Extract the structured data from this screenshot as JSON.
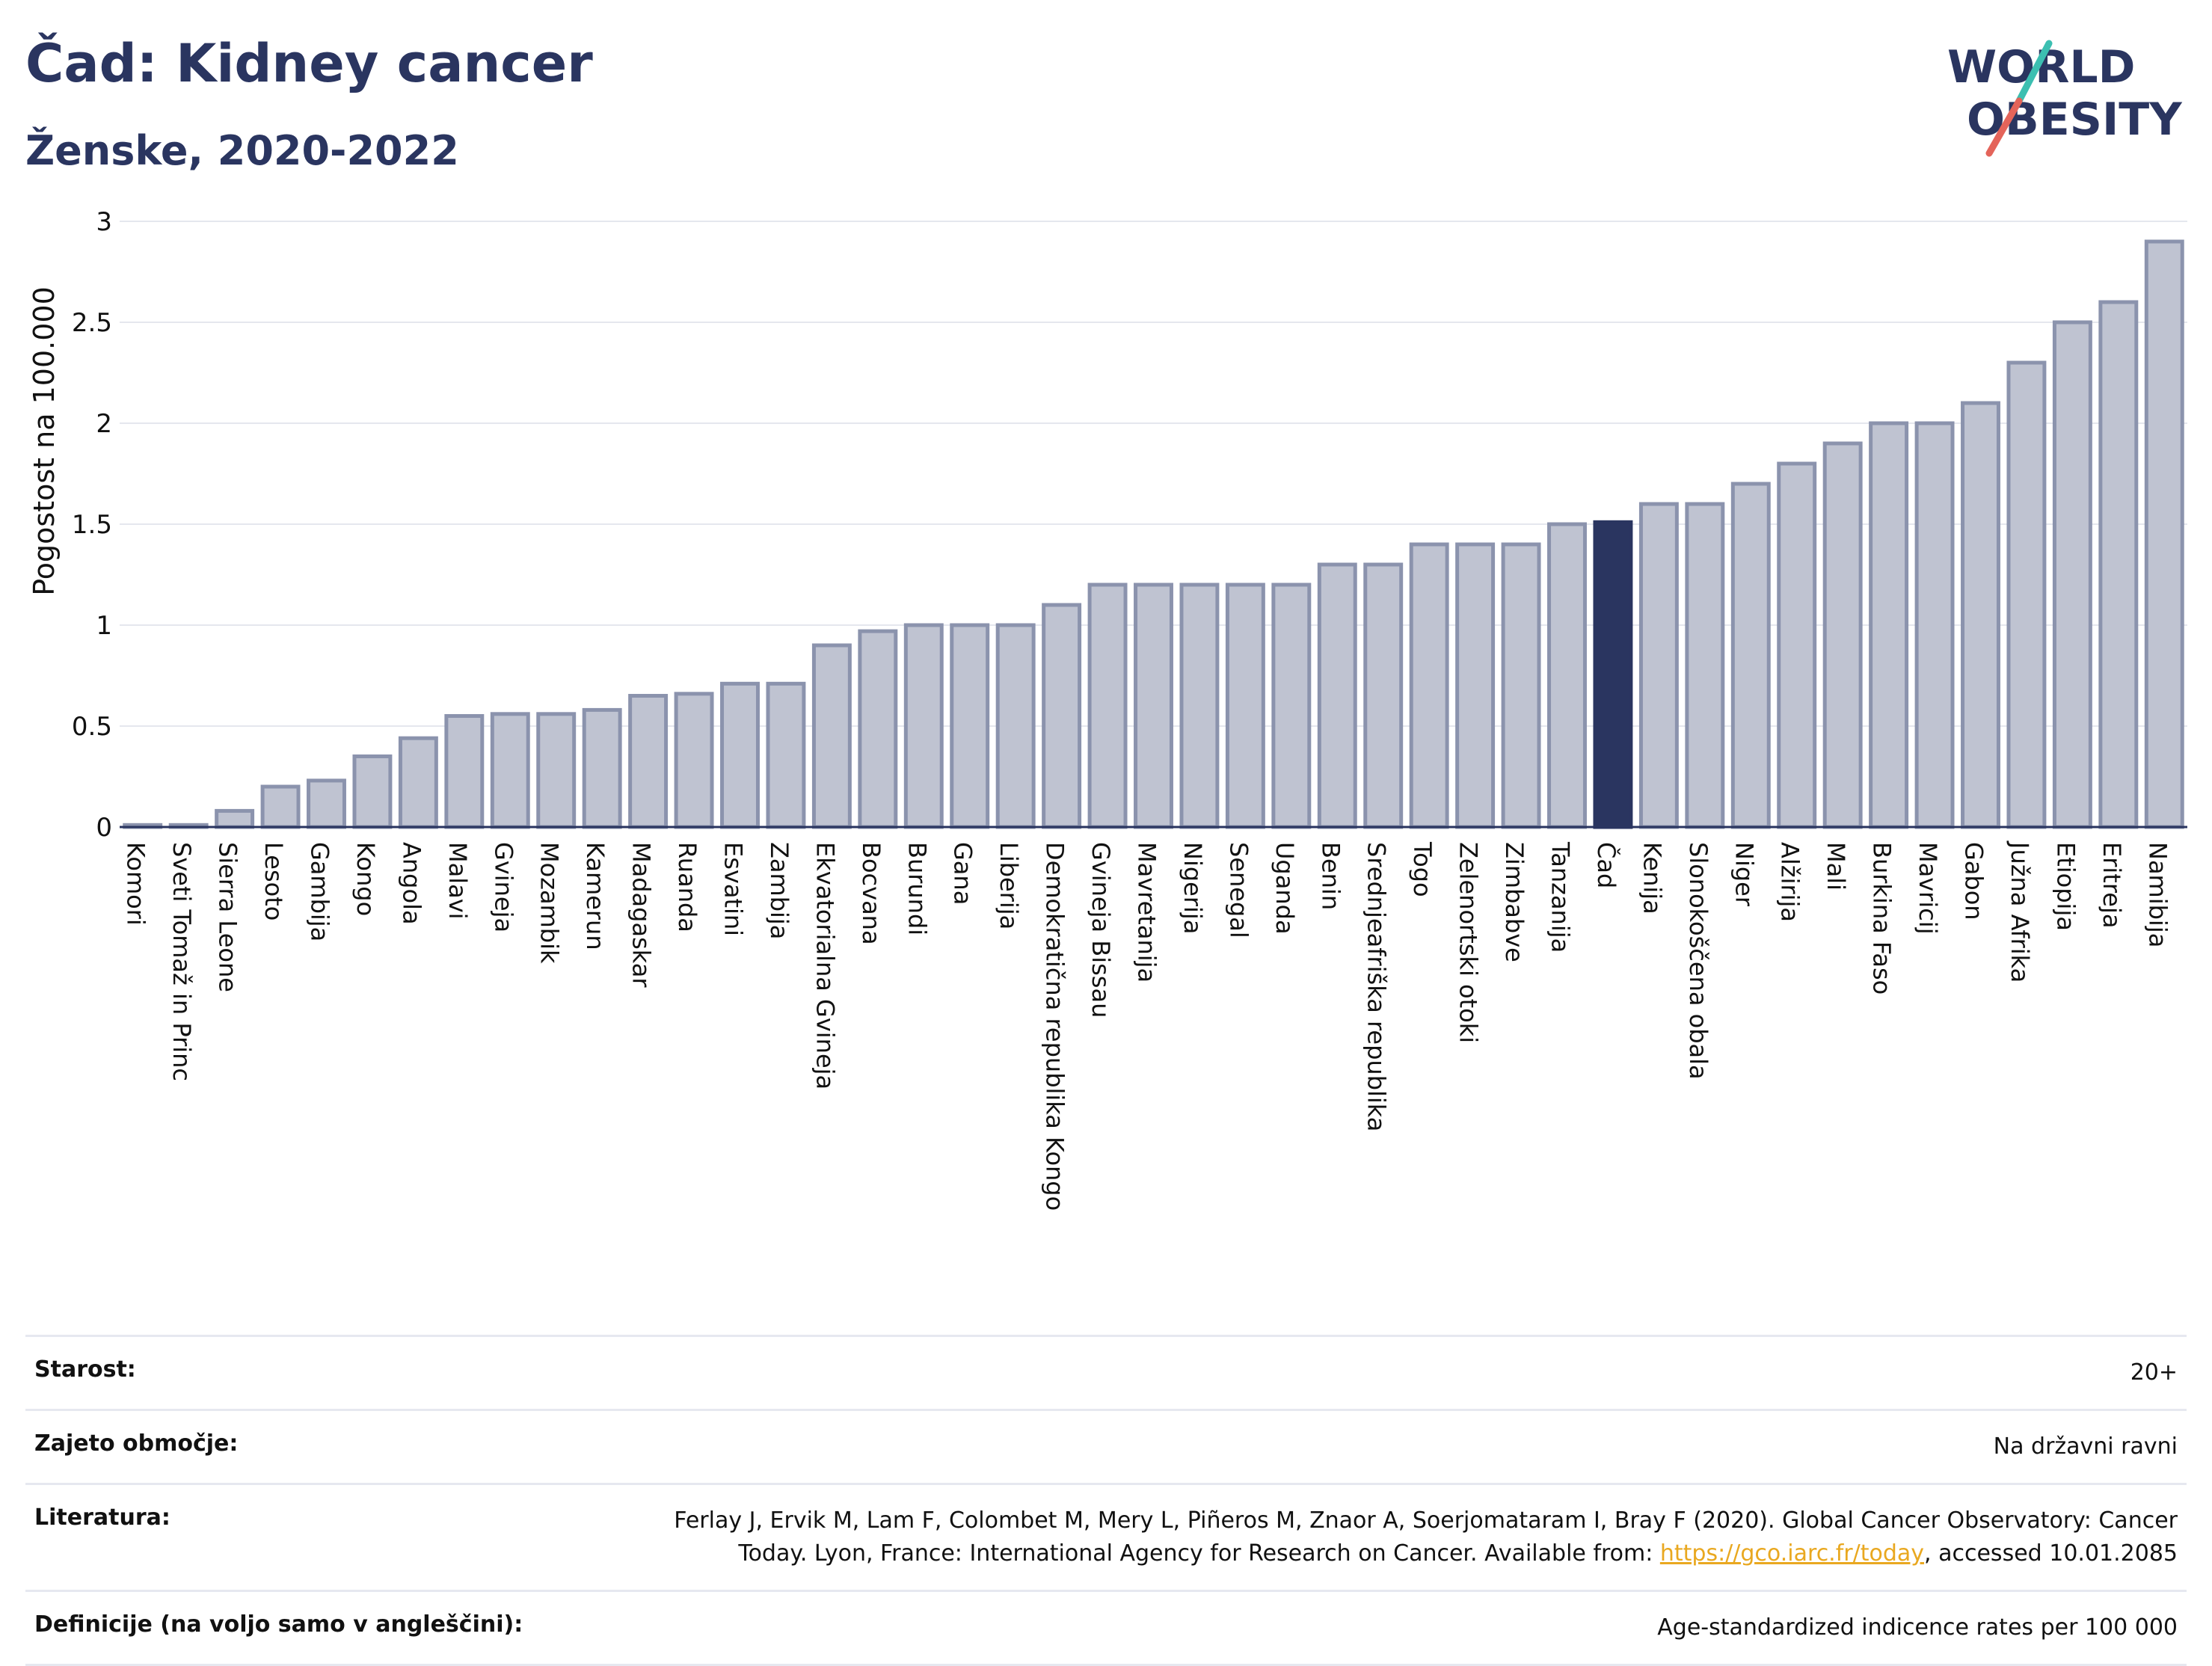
{
  "title": "Čad: Kidney cancer",
  "subtitle": "Ženske, 2020-2022",
  "logo": {
    "line1": "WORLD",
    "line2": "OBESITY"
  },
  "colors": {
    "bar": "#bfc3d1",
    "bar_stroke": "#8b93ad",
    "highlight": "#2a3560",
    "grid": "#e5e7ee",
    "axis": "#2a3560"
  },
  "chart_data": {
    "type": "bar",
    "ylabel": "Pogostost na 100.000",
    "xlabel": "",
    "ylim": [
      0,
      3
    ],
    "yticks": [
      0,
      0.5,
      1,
      1.5,
      2,
      2.5,
      3
    ],
    "ytick_labels": [
      "0",
      "0.5",
      "1",
      "1.5",
      "2",
      "2.5",
      "3"
    ],
    "grid": true,
    "highlight": "Čad",
    "categories": [
      "Komori",
      "Sveti Tomaž in Princ",
      "Sierra Leone",
      "Lesoto",
      "Gambija",
      "Kongo",
      "Angola",
      "Malavi",
      "Gvineja",
      "Mozambik",
      "Kamerun",
      "Madagaskar",
      "Ruanda",
      "Esvatini",
      "Zambija",
      "Ekvatorialna Gvineja",
      "Bocvana",
      "Burundi",
      "Gana",
      "Liberija",
      "Demokratična republika Kongo",
      "Gvineja Bissau",
      "Mavretanija",
      "Nigerija",
      "Senegal",
      "Uganda",
      "Benin",
      "Srednjeafriška republika",
      "Togo",
      "Zelenortski otoki",
      "Zimbabve",
      "Tanzanija",
      "Čad",
      "Kenija",
      "Slonokoščena obala",
      "Niger",
      "Alžirija",
      "Mali",
      "Burkina Faso",
      "Mavricij",
      "Gabon",
      "Južna Afrika",
      "Etiopija",
      "Eritreja",
      "Namibija"
    ],
    "values": [
      0.01,
      0.01,
      0.08,
      0.2,
      0.23,
      0.35,
      0.44,
      0.55,
      0.56,
      0.56,
      0.58,
      0.65,
      0.66,
      0.71,
      0.71,
      0.9,
      0.97,
      1.0,
      1.0,
      1.0,
      1.1,
      1.2,
      1.2,
      1.2,
      1.2,
      1.2,
      1.3,
      1.3,
      1.4,
      1.4,
      1.4,
      1.5,
      1.51,
      1.6,
      1.6,
      1.7,
      1.8,
      1.9,
      2.0,
      2.0,
      2.1,
      2.3,
      2.5,
      2.6,
      2.9
    ]
  },
  "info": [
    {
      "label": "Starost:",
      "value": "20+"
    },
    {
      "label": "Zajeto območje:",
      "value": "Na državni ravni"
    },
    {
      "label": "Literatura:",
      "value_before": "Ferlay J, Ervik M, Lam F, Colombet M, Mery L, Piñeros M, Znaor A, Soerjomataram I, Bray F (2020). Global Cancer Observatory: Cancer Today. Lyon, France: International Agency for Research on Cancer. Available from: ",
      "link": "https://gco.iarc.fr/today",
      "value_after": ", accessed 10.01.2085"
    },
    {
      "label": "Definicije (na voljo samo v angleščini):",
      "value": "Age-standardized indicence rates per 100 000"
    }
  ]
}
